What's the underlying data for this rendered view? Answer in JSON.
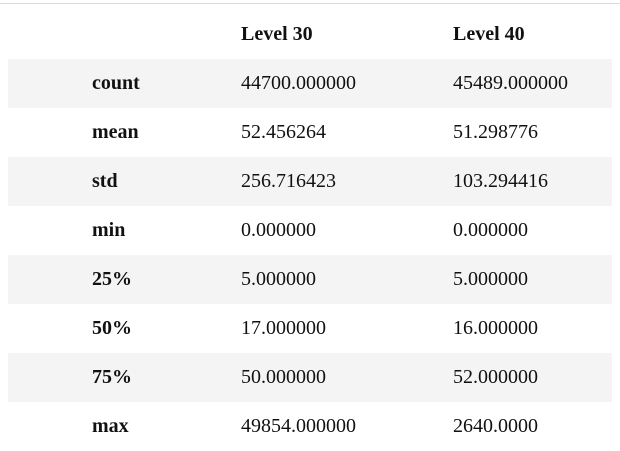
{
  "table": {
    "columns": [
      "",
      "Level 30",
      "Level 40"
    ],
    "rows": [
      {
        "label": "count",
        "values": [
          "44700.000000",
          "45489.000000"
        ]
      },
      {
        "label": "mean",
        "values": [
          "52.456264",
          "51.298776"
        ]
      },
      {
        "label": "std",
        "values": [
          "256.716423",
          "103.294416"
        ]
      },
      {
        "label": "min",
        "values": [
          "0.000000",
          "0.000000"
        ]
      },
      {
        "label": "25%",
        "values": [
          "5.000000",
          "5.000000"
        ]
      },
      {
        "label": "50%",
        "values": [
          "17.000000",
          "16.000000"
        ]
      },
      {
        "label": "75%",
        "values": [
          "50.000000",
          "52.000000"
        ]
      },
      {
        "label": "max",
        "values": [
          "49854.000000",
          "2640.0000"
        ]
      }
    ]
  }
}
